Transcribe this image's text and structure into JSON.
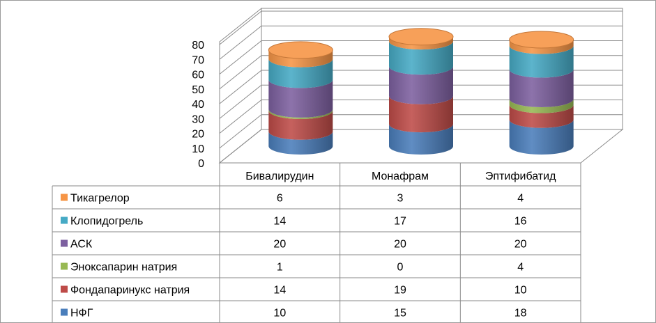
{
  "chart_data": {
    "type": "bar",
    "style": "stacked-3d-cylinder",
    "categories": [
      "Бивалирудин",
      "Монафрам",
      "Эптифибатид"
    ],
    "series": [
      {
        "name": "НФГ",
        "values": [
          10,
          15,
          18
        ],
        "color": "#4a7ebb"
      },
      {
        "name": "Фондапаринукс натрия",
        "values": [
          14,
          19,
          10
        ],
        "color": "#be4b48"
      },
      {
        "name": "Эноксапарин натрия",
        "values": [
          1,
          0,
          4
        ],
        "color": "#98b954"
      },
      {
        "name": "АСК",
        "values": [
          20,
          20,
          20
        ],
        "color": "#7d60a0"
      },
      {
        "name": "Клопидогрель",
        "values": [
          14,
          17,
          16
        ],
        "color": "#46aac5"
      },
      {
        "name": "Тикагрелор",
        "values": [
          6,
          3,
          4
        ],
        "color": "#f69546"
      }
    ],
    "y_ticks": [
      "0",
      "10",
      "20",
      "30",
      "40",
      "50",
      "60",
      "70",
      "80"
    ],
    "ylim": [
      0,
      80
    ],
    "grid": true,
    "legend": "data-table-below"
  }
}
